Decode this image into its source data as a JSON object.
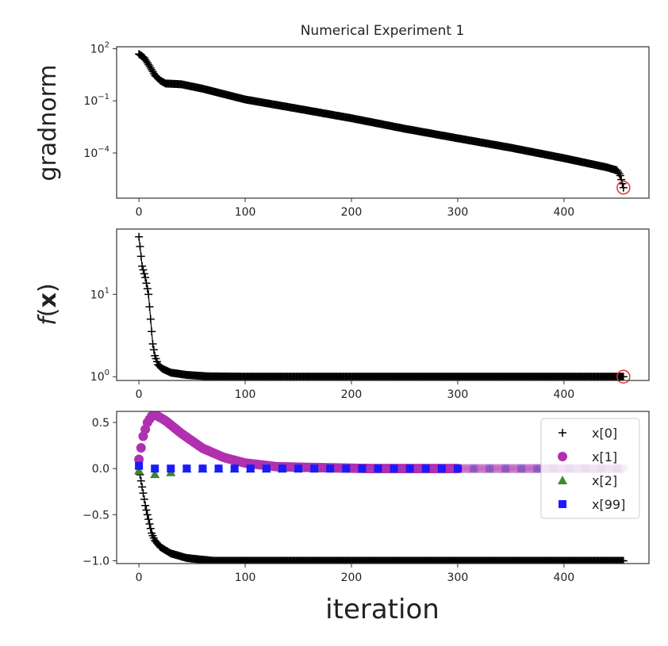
{
  "chart_data": [
    {
      "type": "line",
      "title": "Numerical Experiment 1",
      "xlabel": "",
      "ylabel": "gradnorm",
      "yscale": "log",
      "xlim": [
        -21,
        480
      ],
      "ylim": [
        2.5e-07,
        130
      ],
      "xticks": [
        0,
        100,
        200,
        300,
        400
      ],
      "yticks": [
        {
          "value": 100,
          "label": "10^2"
        },
        {
          "value": 0.1,
          "label": "10^-1"
        },
        {
          "value": 0.0001,
          "label": "10^-4"
        }
      ],
      "series": [
        {
          "marker": "plus",
          "color": "#000000",
          "x": [
            0,
            5,
            10,
            15,
            20,
            25,
            40,
            60,
            100,
            150,
            200,
            250,
            300,
            350,
            400,
            440,
            450,
            453,
            456
          ],
          "y": [
            50,
            30,
            10,
            3,
            1.5,
            1.0,
            0.9,
            0.5,
            0.12,
            0.035,
            0.01,
            0.0025,
            0.0007,
            0.0002,
            5e-05,
            1.5e-05,
            1e-05,
            5e-06,
            1e-06
          ]
        }
      ],
      "highlight": {
        "x": 456,
        "y": 1e-06,
        "color": "#e8322d"
      }
    },
    {
      "type": "line",
      "xlabel": "",
      "ylabel": "f(x)",
      "yscale": "log",
      "xlim": [
        -21,
        480
      ],
      "ylim": [
        0.9,
        62
      ],
      "xticks": [
        0,
        100,
        200,
        300,
        400
      ],
      "yticks": [
        {
          "value": 10,
          "label": "10^1"
        },
        {
          "value": 1,
          "label": "10^0"
        }
      ],
      "series": [
        {
          "marker": "plus",
          "color": "#000000",
          "x": [
            0,
            3,
            6,
            9,
            11,
            13,
            15,
            18,
            22,
            30,
            45,
            65,
            100,
            456
          ],
          "y": [
            50,
            22,
            16,
            10,
            5,
            2.5,
            1.8,
            1.4,
            1.25,
            1.12,
            1.05,
            1.01,
            1.0,
            1.0
          ]
        }
      ],
      "highlight": {
        "x": 456,
        "y": 1.0,
        "color": "#e8322d"
      }
    },
    {
      "type": "scatter",
      "xlabel": "iteration",
      "ylabel": "",
      "xlim": [
        -21,
        480
      ],
      "ylim": [
        -1.03,
        0.62
      ],
      "xticks": [
        0,
        100,
        200,
        300,
        400
      ],
      "yticks": [
        {
          "value": 0.5,
          "label": "0.5"
        },
        {
          "value": 0,
          "label": "0.0"
        },
        {
          "value": -0.5,
          "label": "−0.5"
        },
        {
          "value": -1,
          "label": "−1.0"
        }
      ],
      "legend_position": "right",
      "series": [
        {
          "name": "x[0]",
          "marker": "plus",
          "color": "#000000",
          "every": 1,
          "x": [
            0,
            3,
            6,
            9,
            12,
            15,
            20,
            30,
            45,
            70,
            456
          ],
          "y": [
            0,
            -0.2,
            -0.4,
            -0.55,
            -0.7,
            -0.78,
            -0.85,
            -0.92,
            -0.97,
            -1.0,
            -1.0
          ]
        },
        {
          "name": "x[1]",
          "marker": "circle",
          "color": "#b030b0",
          "every": 2,
          "x": [
            0,
            4,
            8,
            12,
            16,
            25,
            40,
            60,
            80,
            100,
            130,
            170,
            220,
            456
          ],
          "y": [
            0.1,
            0.35,
            0.5,
            0.57,
            0.58,
            0.52,
            0.38,
            0.22,
            0.12,
            0.06,
            0.02,
            0.01,
            0,
            0
          ]
        },
        {
          "name": "x[2]",
          "marker": "triangle",
          "color": "#3c8a2a",
          "every": 15,
          "x": [
            0,
            15,
            30,
            45,
            456
          ],
          "y": [
            -0.02,
            -0.06,
            -0.04,
            0,
            0
          ]
        },
        {
          "name": "x[99]",
          "marker": "square",
          "color": "#1a1aff",
          "every": 15,
          "x": [
            0,
            15,
            456
          ],
          "y": [
            0.03,
            0,
            0
          ]
        }
      ]
    }
  ]
}
